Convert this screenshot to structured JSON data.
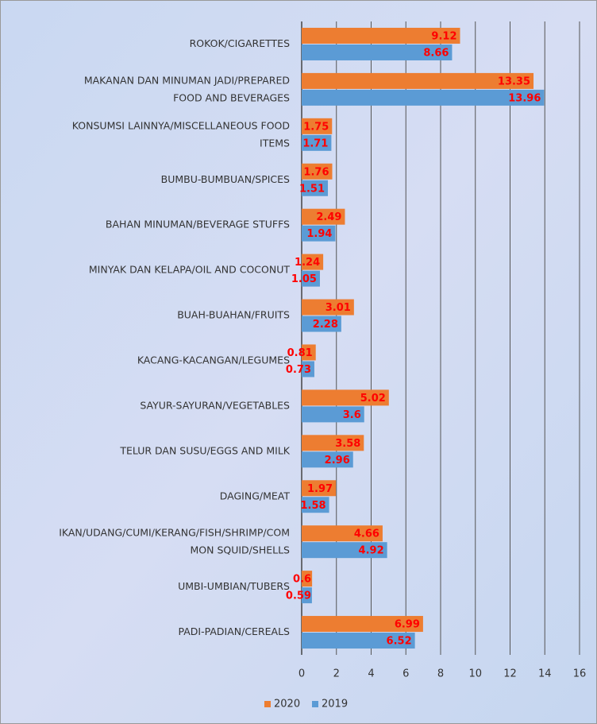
{
  "chart_data": {
    "type": "barh",
    "categories": [
      "ROKOK/CIGARETTES",
      "MAKANAN DAN MINUMAN JADI/PREPARED\nFOOD AND BEVERAGES",
      "KONSUMSI LAINNYA/MISCELLANEOUS FOOD\nITEMS",
      "BUMBU-BUMBUAN/SPICES",
      "BAHAN MINUMAN/BEVERAGE STUFFS",
      "MINYAK DAN KELAPA/OIL AND COCONUT",
      "BUAH-BUAHAN/FRUITS",
      "KACANG-KACANGAN/LEGUMES",
      "SAYUR-SAYURAN/VEGETABLES",
      "TELUR DAN SUSU/EGGS AND MILK",
      "DAGING/MEAT",
      "IKAN/UDANG/CUMI/KERANG/FISH/SHRIMP/COM\nMON SQUID/SHELLS",
      "UMBI-UMBIAN/TUBERS",
      "PADI-PADIAN/CEREALS"
    ],
    "series": [
      {
        "name": "2020",
        "color": "#ed7d31",
        "values": [
          9.12,
          13.35,
          1.75,
          1.76,
          2.49,
          1.24,
          3.01,
          0.81,
          5.02,
          3.58,
          1.97,
          4.66,
          0.6,
          6.99
        ]
      },
      {
        "name": "2019",
        "color": "#5b9bd5",
        "values": [
          8.66,
          13.96,
          1.71,
          1.51,
          1.94,
          1.05,
          2.28,
          0.73,
          3.6,
          2.96,
          1.58,
          4.92,
          0.59,
          6.52
        ]
      }
    ],
    "xlim": [
      0,
      16
    ],
    "xticks": [
      0,
      2,
      4,
      6,
      8,
      10,
      12,
      14,
      16
    ],
    "grid": true
  }
}
